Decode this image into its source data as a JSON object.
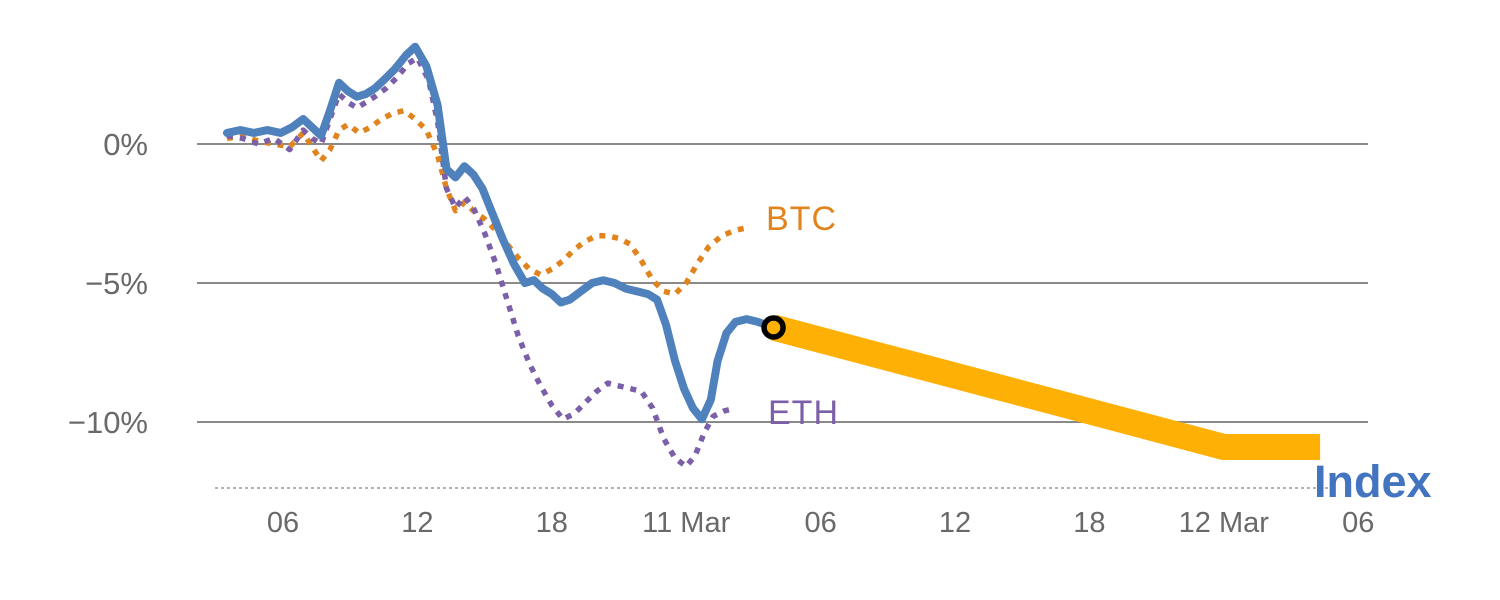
{
  "chart_data": {
    "type": "line",
    "title": "",
    "grid": "horizontal",
    "ylim": [
      -12.5,
      4
    ],
    "x_ticks": [
      {
        "t": 6,
        "label": "06"
      },
      {
        "t": 12,
        "label": "12"
      },
      {
        "t": 18,
        "label": "18"
      },
      {
        "t": 24,
        "label": "11 Mar"
      },
      {
        "t": 30,
        "label": "06"
      },
      {
        "t": 36,
        "label": "12"
      },
      {
        "t": 42,
        "label": "18"
      },
      {
        "t": 48,
        "label": "12 Mar"
      },
      {
        "t": 54,
        "label": "06"
      }
    ],
    "y_ticks": [
      {
        "v": 0,
        "label": "0%"
      },
      {
        "v": -5,
        "label": "−5%"
      },
      {
        "v": -10,
        "label": "−10%"
      }
    ],
    "series": [
      {
        "name": "Index projection",
        "color": "#ffb005",
        "style": "solid",
        "width": 26,
        "points": [
          [
            27.9,
            -6.6
          ],
          [
            48.0,
            -10.9
          ],
          [
            52.3,
            -10.9
          ]
        ]
      },
      {
        "name": "BTC",
        "color": "#e1841e",
        "style": "dotted",
        "width": 5.5,
        "points": [
          [
            3.5,
            0.2
          ],
          [
            4.2,
            0.3
          ],
          [
            4.9,
            0.1
          ],
          [
            5.6,
            0.0
          ],
          [
            6.3,
            -0.1
          ],
          [
            6.9,
            0.4
          ],
          [
            7.3,
            -0.1
          ],
          [
            7.7,
            -0.6
          ],
          [
            8.1,
            -0.2
          ],
          [
            8.5,
            0.5
          ],
          [
            8.9,
            0.7
          ],
          [
            9.4,
            0.4
          ],
          [
            9.9,
            0.6
          ],
          [
            10.4,
            0.9
          ],
          [
            10.9,
            1.1
          ],
          [
            11.4,
            1.2
          ],
          [
            11.9,
            0.9
          ],
          [
            12.4,
            0.5
          ],
          [
            12.9,
            -0.4
          ],
          [
            13.3,
            -1.6
          ],
          [
            13.7,
            -2.4
          ],
          [
            14.1,
            -2.1
          ],
          [
            14.5,
            -2.4
          ],
          [
            15.0,
            -2.7
          ],
          [
            15.5,
            -3.1
          ],
          [
            16.0,
            -3.6
          ],
          [
            16.5,
            -4.1
          ],
          [
            17.0,
            -4.5
          ],
          [
            17.5,
            -4.7
          ],
          [
            18.0,
            -4.5
          ],
          [
            18.5,
            -4.2
          ],
          [
            19.0,
            -3.8
          ],
          [
            19.5,
            -3.5
          ],
          [
            20.0,
            -3.3
          ],
          [
            20.5,
            -3.3
          ],
          [
            21.0,
            -3.4
          ],
          [
            21.5,
            -3.6
          ],
          [
            22.0,
            -4.2
          ],
          [
            22.5,
            -4.9
          ],
          [
            23.0,
            -5.3
          ],
          [
            23.5,
            -5.4
          ],
          [
            24.0,
            -5.0
          ],
          [
            24.5,
            -4.3
          ],
          [
            25.0,
            -3.7
          ],
          [
            25.6,
            -3.3
          ],
          [
            26.2,
            -3.1
          ],
          [
            26.8,
            -3.0
          ]
        ]
      },
      {
        "name": "ETH",
        "color": "#7b5fa8",
        "style": "dotted",
        "width": 5.5,
        "points": [
          [
            3.5,
            0.3
          ],
          [
            4.2,
            0.2
          ],
          [
            4.9,
            0.0
          ],
          [
            5.6,
            0.2
          ],
          [
            6.3,
            -0.2
          ],
          [
            6.9,
            0.5
          ],
          [
            7.3,
            0.2
          ],
          [
            7.7,
            0.0
          ],
          [
            8.1,
            0.9
          ],
          [
            8.5,
            1.8
          ],
          [
            8.9,
            1.5
          ],
          [
            9.3,
            1.3
          ],
          [
            9.7,
            1.5
          ],
          [
            10.1,
            1.7
          ],
          [
            10.6,
            2.0
          ],
          [
            11.1,
            2.4
          ],
          [
            11.6,
            2.9
          ],
          [
            12.0,
            3.1
          ],
          [
            12.5,
            2.3
          ],
          [
            12.9,
            0.8
          ],
          [
            13.3,
            -1.6
          ],
          [
            13.7,
            -2.3
          ],
          [
            14.1,
            -1.9
          ],
          [
            14.5,
            -2.3
          ],
          [
            15.0,
            -3.2
          ],
          [
            15.5,
            -4.3
          ],
          [
            16.0,
            -5.6
          ],
          [
            16.5,
            -6.9
          ],
          [
            17.0,
            -7.9
          ],
          [
            17.5,
            -8.7
          ],
          [
            18.0,
            -9.4
          ],
          [
            18.5,
            -9.9
          ],
          [
            19.0,
            -9.7
          ],
          [
            19.5,
            -9.3
          ],
          [
            20.0,
            -8.9
          ],
          [
            20.5,
            -8.6
          ],
          [
            21.0,
            -8.7
          ],
          [
            21.5,
            -8.8
          ],
          [
            22.0,
            -8.9
          ],
          [
            22.5,
            -9.5
          ],
          [
            23.0,
            -10.6
          ],
          [
            23.5,
            -11.3
          ],
          [
            24.0,
            -11.6
          ],
          [
            24.4,
            -11.2
          ],
          [
            24.8,
            -10.4
          ],
          [
            25.2,
            -9.8
          ],
          [
            25.7,
            -9.6
          ],
          [
            26.2,
            -9.5
          ]
        ]
      },
      {
        "name": "Index",
        "color": "#4f81bd",
        "style": "solid",
        "width": 8,
        "points": [
          [
            3.5,
            0.4
          ],
          [
            4.1,
            0.5
          ],
          [
            4.7,
            0.4
          ],
          [
            5.3,
            0.5
          ],
          [
            5.9,
            0.4
          ],
          [
            6.4,
            0.6
          ],
          [
            6.9,
            0.9
          ],
          [
            7.3,
            0.6
          ],
          [
            7.7,
            0.3
          ],
          [
            8.1,
            1.2
          ],
          [
            8.5,
            2.2
          ],
          [
            8.9,
            1.9
          ],
          [
            9.3,
            1.7
          ],
          [
            9.7,
            1.8
          ],
          [
            10.1,
            2.0
          ],
          [
            10.5,
            2.3
          ],
          [
            11.0,
            2.7
          ],
          [
            11.5,
            3.2
          ],
          [
            11.9,
            3.5
          ],
          [
            12.4,
            2.8
          ],
          [
            12.9,
            1.4
          ],
          [
            13.3,
            -0.9
          ],
          [
            13.7,
            -1.2
          ],
          [
            14.1,
            -0.8
          ],
          [
            14.5,
            -1.1
          ],
          [
            14.9,
            -1.6
          ],
          [
            15.3,
            -2.4
          ],
          [
            15.8,
            -3.4
          ],
          [
            16.3,
            -4.3
          ],
          [
            16.8,
            -5.0
          ],
          [
            17.2,
            -4.9
          ],
          [
            17.6,
            -5.2
          ],
          [
            18.0,
            -5.4
          ],
          [
            18.4,
            -5.7
          ],
          [
            18.8,
            -5.6
          ],
          [
            19.3,
            -5.3
          ],
          [
            19.8,
            -5.0
          ],
          [
            20.3,
            -4.9
          ],
          [
            20.8,
            -5.0
          ],
          [
            21.3,
            -5.2
          ],
          [
            21.8,
            -5.3
          ],
          [
            22.3,
            -5.4
          ],
          [
            22.7,
            -5.6
          ],
          [
            23.1,
            -6.5
          ],
          [
            23.5,
            -7.8
          ],
          [
            23.9,
            -8.8
          ],
          [
            24.3,
            -9.5
          ],
          [
            24.7,
            -9.9
          ],
          [
            25.1,
            -9.2
          ],
          [
            25.4,
            -7.8
          ],
          [
            25.8,
            -6.8
          ],
          [
            26.2,
            -6.4
          ],
          [
            26.7,
            -6.3
          ],
          [
            27.2,
            -6.4
          ],
          [
            27.9,
            -6.6
          ]
        ]
      }
    ],
    "marker": {
      "t": 27.9,
      "v": -6.6,
      "fill": "#ffb005",
      "stroke": "#000000"
    },
    "annotations": [
      {
        "text": "BTC",
        "color": "#e1841e"
      },
      {
        "text": "ETH",
        "color": "#7b5fa8"
      },
      {
        "text": "Index",
        "color": "#4374c0"
      }
    ],
    "colors": {
      "grid": "#8a8a8a",
      "axis_line": "#9a9a9a",
      "axis_text": "#696969"
    }
  }
}
